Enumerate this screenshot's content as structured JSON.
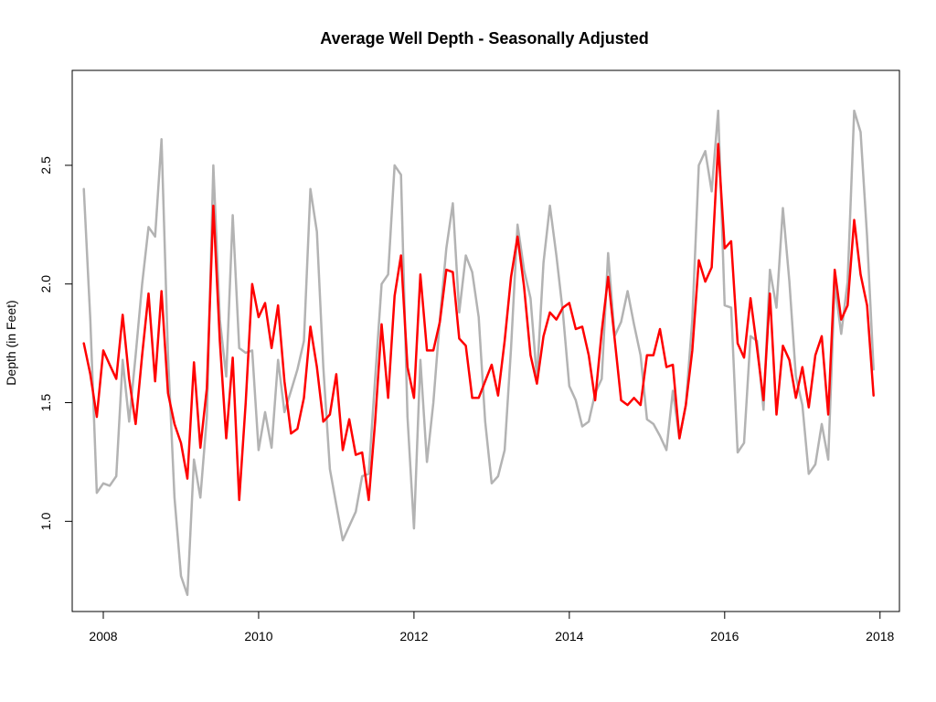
{
  "chart_data": {
    "type": "line",
    "title": "Average Well Depth - Seasonally Adjusted",
    "xlabel": "",
    "ylabel": "Depth (in Feet)",
    "xlim": [
      2007.6,
      2018.25
    ],
    "ylim": [
      0.62,
      2.9
    ],
    "x_ticks": [
      2008,
      2010,
      2012,
      2014,
      2016,
      2018
    ],
    "y_ticks": [
      1.0,
      1.5,
      2.0,
      2.5
    ],
    "y_tick_labels": [
      "1.0",
      "1.5",
      "2.0",
      "2.5"
    ],
    "grid": false,
    "legend": "none",
    "series": [
      {
        "color": "#b3b3b3",
        "x": [
          2007.75,
          2007.833,
          2007.917,
          2008.0,
          2008.083,
          2008.167,
          2008.25,
          2008.333,
          2008.417,
          2008.5,
          2008.583,
          2008.667,
          2008.75,
          2008.833,
          2008.917,
          2009.0,
          2009.083,
          2009.167,
          2009.25,
          2009.333,
          2009.417,
          2009.5,
          2009.583,
          2009.667,
          2009.75,
          2009.833,
          2009.917,
          2010.0,
          2010.083,
          2010.167,
          2010.25,
          2010.333,
          2010.417,
          2010.5,
          2010.583,
          2010.667,
          2010.75,
          2010.833,
          2010.917,
          2011.0,
          2011.083,
          2011.167,
          2011.25,
          2011.333,
          2011.417,
          2011.5,
          2011.583,
          2011.667,
          2011.75,
          2011.833,
          2011.917,
          2012.0,
          2012.083,
          2012.167,
          2012.25,
          2012.333,
          2012.417,
          2012.5,
          2012.583,
          2012.667,
          2012.75,
          2012.833,
          2012.917,
          2013.0,
          2013.083,
          2013.167,
          2013.25,
          2013.333,
          2013.417,
          2013.5,
          2013.583,
          2013.667,
          2013.75,
          2013.833,
          2013.917,
          2014.0,
          2014.083,
          2014.167,
          2014.25,
          2014.333,
          2014.417,
          2014.5,
          2014.583,
          2014.667,
          2014.75,
          2014.833,
          2014.917,
          2015.0,
          2015.083,
          2015.167,
          2015.25,
          2015.333,
          2015.417,
          2015.5,
          2015.583,
          2015.667,
          2015.75,
          2015.833,
          2015.917,
          2016.0,
          2016.083,
          2016.167,
          2016.25,
          2016.333,
          2016.417,
          2016.5,
          2016.583,
          2016.667,
          2016.75,
          2016.833,
          2016.917,
          2017.0,
          2017.083,
          2017.167,
          2017.25,
          2017.333,
          2017.417,
          2017.5,
          2017.583,
          2017.667,
          2017.75,
          2017.833,
          2017.917
        ],
        "y": [
          2.4,
          1.85,
          1.12,
          1.16,
          1.15,
          1.19,
          1.68,
          1.42,
          1.7,
          2.0,
          2.24,
          2.2,
          2.61,
          1.7,
          1.1,
          0.77,
          0.69,
          1.26,
          1.1,
          1.44,
          2.5,
          1.85,
          1.61,
          2.29,
          1.73,
          1.71,
          1.72,
          1.3,
          1.46,
          1.31,
          1.68,
          1.46,
          1.55,
          1.64,
          1.76,
          2.4,
          2.22,
          1.65,
          1.22,
          1.07,
          0.92,
          0.98,
          1.04,
          1.19,
          1.2,
          1.6,
          2.0,
          2.04,
          2.5,
          2.46,
          1.44,
          0.97,
          1.68,
          1.25,
          1.5,
          1.85,
          2.15,
          2.34,
          1.88,
          2.12,
          2.05,
          1.86,
          1.42,
          1.16,
          1.19,
          1.3,
          1.73,
          2.25,
          2.06,
          1.94,
          1.6,
          2.09,
          2.33,
          2.12,
          1.88,
          1.57,
          1.51,
          1.4,
          1.42,
          1.54,
          1.6,
          2.13,
          1.78,
          1.84,
          1.97,
          1.83,
          1.7,
          1.43,
          1.41,
          1.36,
          1.3,
          1.55,
          1.35,
          1.49,
          1.85,
          2.5,
          2.56,
          2.39,
          2.73,
          1.91,
          1.9,
          1.29,
          1.33,
          1.78,
          1.76,
          1.47,
          2.06,
          1.9,
          2.32,
          2.01,
          1.61,
          1.49,
          1.2,
          1.24,
          1.41,
          1.26,
          2.0,
          1.79,
          2.01,
          2.73,
          2.64,
          2.2,
          1.64
        ]
      },
      {
        "color": "#ff0000",
        "x": [
          2007.75,
          2007.833,
          2007.917,
          2008.0,
          2008.083,
          2008.167,
          2008.25,
          2008.333,
          2008.417,
          2008.5,
          2008.583,
          2008.667,
          2008.75,
          2008.833,
          2008.917,
          2009.0,
          2009.083,
          2009.167,
          2009.25,
          2009.333,
          2009.417,
          2009.5,
          2009.583,
          2009.667,
          2009.75,
          2009.833,
          2009.917,
          2010.0,
          2010.083,
          2010.167,
          2010.25,
          2010.333,
          2010.417,
          2010.5,
          2010.583,
          2010.667,
          2010.75,
          2010.833,
          2010.917,
          2011.0,
          2011.083,
          2011.167,
          2011.25,
          2011.333,
          2011.417,
          2011.5,
          2011.583,
          2011.667,
          2011.75,
          2011.833,
          2011.917,
          2012.0,
          2012.083,
          2012.167,
          2012.25,
          2012.333,
          2012.417,
          2012.5,
          2012.583,
          2012.667,
          2012.75,
          2012.833,
          2012.917,
          2013.0,
          2013.083,
          2013.167,
          2013.25,
          2013.333,
          2013.417,
          2013.5,
          2013.583,
          2013.667,
          2013.75,
          2013.833,
          2013.917,
          2014.0,
          2014.083,
          2014.167,
          2014.25,
          2014.333,
          2014.417,
          2014.5,
          2014.583,
          2014.667,
          2014.75,
          2014.833,
          2014.917,
          2015.0,
          2015.083,
          2015.167,
          2015.25,
          2015.333,
          2015.417,
          2015.5,
          2015.583,
          2015.667,
          2015.75,
          2015.833,
          2015.917,
          2016.0,
          2016.083,
          2016.167,
          2016.25,
          2016.333,
          2016.417,
          2016.5,
          2016.583,
          2016.667,
          2016.75,
          2016.833,
          2016.917,
          2017.0,
          2017.083,
          2017.167,
          2017.25,
          2017.333,
          2017.417,
          2017.5,
          2017.583,
          2017.667,
          2017.75,
          2017.833,
          2017.917
        ],
        "y": [
          1.75,
          1.62,
          1.44,
          1.72,
          1.66,
          1.6,
          1.87,
          1.6,
          1.41,
          1.7,
          1.96,
          1.59,
          1.97,
          1.54,
          1.41,
          1.33,
          1.18,
          1.67,
          1.31,
          1.56,
          2.33,
          1.76,
          1.35,
          1.69,
          1.09,
          1.5,
          2.0,
          1.86,
          1.92,
          1.73,
          1.91,
          1.59,
          1.37,
          1.39,
          1.52,
          1.82,
          1.65,
          1.42,
          1.45,
          1.62,
          1.3,
          1.43,
          1.28,
          1.29,
          1.09,
          1.42,
          1.83,
          1.52,
          1.95,
          2.12,
          1.65,
          1.52,
          2.04,
          1.72,
          1.72,
          1.84,
          2.06,
          2.05,
          1.77,
          1.74,
          1.52,
          1.52,
          1.59,
          1.66,
          1.53,
          1.76,
          2.03,
          2.2,
          1.99,
          1.7,
          1.58,
          1.78,
          1.88,
          1.85,
          1.9,
          1.92,
          1.81,
          1.82,
          1.7,
          1.51,
          1.8,
          2.03,
          1.77,
          1.51,
          1.49,
          1.52,
          1.49,
          1.7,
          1.7,
          1.81,
          1.65,
          1.66,
          1.35,
          1.49,
          1.72,
          2.1,
          2.01,
          2.07,
          2.59,
          2.15,
          2.18,
          1.75,
          1.69,
          1.94,
          1.73,
          1.51,
          1.96,
          1.45,
          1.74,
          1.68,
          1.52,
          1.65,
          1.48,
          1.7,
          1.78,
          1.45,
          2.06,
          1.85,
          1.91,
          2.27,
          2.04,
          1.91,
          1.53
        ]
      }
    ]
  }
}
